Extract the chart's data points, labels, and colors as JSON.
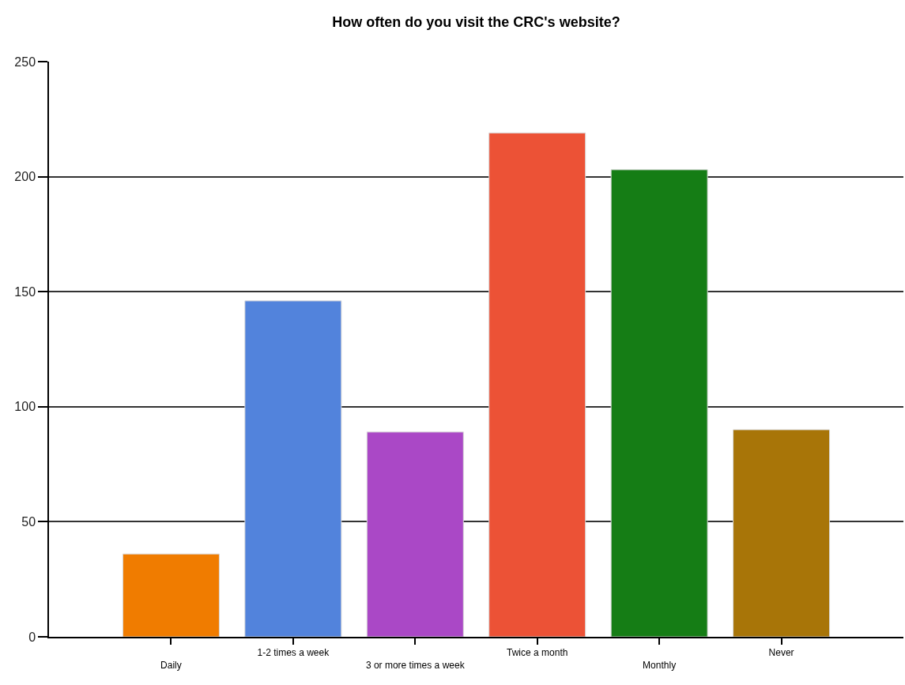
{
  "chart_data": {
    "type": "bar",
    "title": "How often do you visit the CRC's website?",
    "categories": [
      "Daily",
      "1-2 times a week",
      "3 or more times a week",
      "Twice a month",
      "Monthly",
      "Never"
    ],
    "values": [
      36,
      146,
      89,
      219,
      203,
      90
    ],
    "colors": [
      "#f07c00",
      "#5283dc",
      "#aa48c6",
      "#ec5236",
      "#157d15",
      "#a87508"
    ],
    "ylim": [
      0,
      250
    ],
    "yticks": [
      0,
      50,
      100,
      150,
      200,
      250
    ],
    "grid": "y"
  }
}
